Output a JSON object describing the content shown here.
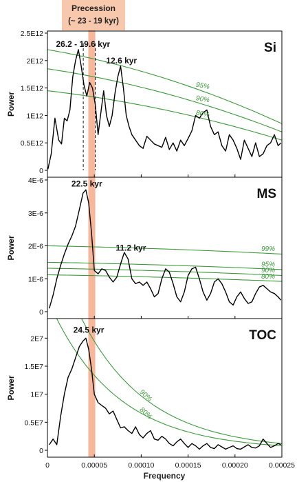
{
  "figure": {
    "band_label_line1": "Precession",
    "band_label_line2": "(~ 23 - 19 kyr)",
    "band_color": "#f4a582",
    "curve_color": "#000000",
    "confidence_color": "#3c9a3c",
    "xlabel": "Frequency",
    "x_ticks": [
      "0",
      "0.00005",
      "0.00010",
      "0.00015",
      "0.00020",
      "0.00025"
    ]
  },
  "chart_data": [
    {
      "type": "line",
      "panel_label": "Si",
      "ylabel": "Power",
      "xlim": [
        0,
        0.00025
      ],
      "ylim": [
        0,
        2500000000000.0
      ],
      "y_ticks": [
        {
          "value": 0,
          "label": "0"
        },
        {
          "value": 500000000000.0,
          "label": "0.5E12"
        },
        {
          "value": 1000000000000.0,
          "label": "1E12"
        },
        {
          "value": 1500000000000.0,
          "label": "1.5E12"
        },
        {
          "value": 2000000000000.0,
          "label": "2E12"
        },
        {
          "value": 2500000000000.0,
          "label": "2.5E12"
        }
      ],
      "series": [
        {
          "x": [
            5e-07,
            4e-06,
            8e-06,
            1.2e-05,
            1.5e-05,
            1.8e-05,
            2.1e-05,
            2.4e-05,
            2.7e-05,
            3e-05,
            3.3e-05,
            3.6e-05,
            3.9e-05,
            4.2e-05,
            4.5e-05,
            4.8e-05,
            5.1e-05,
            5.4e-05,
            5.7e-05,
            6e-05,
            6.3e-05,
            6.6e-05,
            6.9e-05,
            7.2e-05,
            7.5e-05,
            7.8e-05,
            8.1e-05,
            8.4e-05,
            8.7e-05,
            9e-05,
            9.4e-05,
            9.8e-05,
            0.000102,
            0.000106,
            0.00011,
            0.000114,
            0.000118,
            0.000122,
            0.000126,
            0.00013,
            0.000134,
            0.000138,
            0.000142,
            0.000146,
            0.00015,
            0.000154,
            0.000158,
            0.000162,
            0.000166,
            0.00017,
            0.000174,
            0.000178,
            0.000182,
            0.000186,
            0.00019,
            0.000194,
            0.000198,
            0.000202,
            0.000206,
            0.00021,
            0.000214,
            0.000218,
            0.000222,
            0.000226,
            0.00023,
            0.000234,
            0.000238,
            0.000242,
            0.000246,
            0.000249
          ],
          "y": [
            20000000000.0,
            300000000000.0,
            950000000000.0,
            550000000000.0,
            480000000000.0,
            950000000000.0,
            900000000000.0,
            1100000000000.0,
            1700000000000.0,
            2000000000000.0,
            2200000000000.0,
            1900000000000.0,
            1550000000000.0,
            1350000000000.0,
            1600000000000.0,
            1500000000000.0,
            1200000000000.0,
            650000000000.0,
            1050000000000.0,
            1450000000000.0,
            1000000000000.0,
            800000000000.0,
            1000000000000.0,
            1400000000000.0,
            1700000000000.0,
            1900000000000.0,
            1500000000000.0,
            1000000000000.0,
            800000000000.0,
            650000000000.0,
            550000000000.0,
            450000000000.0,
            400000000000.0,
            620000000000.0,
            550000000000.0,
            480000000000.0,
            450000000000.0,
            420000000000.0,
            600000000000.0,
            380000000000.0,
            500000000000.0,
            350000000000.0,
            550000000000.0,
            450000000000.0,
            580000000000.0,
            720000000000.0,
            1000000000000.0,
            950000000000.0,
            1050000000000.0,
            1100000000000.0,
            800000000000.0,
            650000000000.0,
            700000000000.0,
            450000000000.0,
            350000000000.0,
            650000000000.0,
            550000000000.0,
            400000000000.0,
            200000000000.0,
            550000000000.0,
            400000000000.0,
            250000000000.0,
            500000000000.0,
            250000000000.0,
            300000000000.0,
            450000000000.0,
            500000000000.0,
            650000000000.0,
            450000000000.0,
            500000000000.0
          ]
        }
      ],
      "confidence_levels": [
        {
          "label": "95%",
          "x": [
            0,
            0.00025
          ],
          "y_start": 2200000000000.0,
          "y_end": 850000000000.0,
          "label_x": 0.000158
        },
        {
          "label": "90%",
          "x": [
            0,
            0.00025
          ],
          "y_start": 1850000000000.0,
          "y_end": 700000000000.0,
          "label_x": 0.000158
        },
        {
          "label": "80%",
          "x": [
            0,
            0.00025
          ],
          "y_start": 1450000000000.0,
          "y_end": 550000000000.0,
          "label_x": 0.000158
        }
      ],
      "annotations": [
        {
          "text": "26.2 - 19.6 kyr",
          "x": 3.8e-05,
          "y": 2250000000000.0
        },
        {
          "text": "12.6 kyr",
          "x": 7.9e-05,
          "y": 1950000000000.0
        }
      ],
      "dashed_lines_x": [
        3.82e-05,
        5.1e-05
      ]
    },
    {
      "type": "line",
      "panel_label": "MS",
      "ylabel": "Power",
      "xlim": [
        0,
        0.00025
      ],
      "ylim": [
        0,
        4e-06
      ],
      "y_ticks": [
        {
          "value": 0,
          "label": "0"
        },
        {
          "value": 1e-06,
          "label": "1E-6"
        },
        {
          "value": 2e-06,
          "label": "2E-6"
        },
        {
          "value": 3e-06,
          "label": "3E-6"
        },
        {
          "value": 4e-06,
          "label": "4E-6"
        }
      ],
      "series": [
        {
          "x": [
            2e-06,
            6e-06,
            1e-05,
            1.4e-05,
            1.8e-05,
            2.2e-05,
            2.6e-05,
            3e-05,
            3.4e-05,
            3.8e-05,
            4.1e-05,
            4.4e-05,
            4.7e-05,
            5e-05,
            5.4e-05,
            5.8e-05,
            6.2e-05,
            6.6e-05,
            7e-05,
            7.4e-05,
            7.8e-05,
            8.2e-05,
            8.6e-05,
            9e-05,
            9.4e-05,
            9.8e-05,
            0.000102,
            0.000106,
            0.00011,
            0.000114,
            0.000118,
            0.000122,
            0.000126,
            0.00013,
            0.000134,
            0.000138,
            0.000142,
            0.000146,
            0.00015,
            0.000154,
            0.000158,
            0.000162,
            0.000166,
            0.00017,
            0.000174,
            0.000178,
            0.000182,
            0.000186,
            0.00019,
            0.000194,
            0.000198,
            0.000202,
            0.000206,
            0.00021,
            0.000214,
            0.000218,
            0.000222,
            0.000226,
            0.00023,
            0.000234,
            0.000238,
            0.000242,
            0.000246,
            0.000249
          ],
          "y": [
            1e-07,
            5e-07,
            1e-06,
            1.4e-06,
            1.75e-06,
            2.05e-06,
            2.3e-06,
            2.6e-06,
            3.1e-06,
            3.6e-06,
            3.7e-06,
            3.3e-06,
            2.4e-06,
            1.25e-06,
            1.15e-06,
            1.3e-06,
            1.25e-06,
            1.05e-06,
            9e-07,
            1.05e-06,
            1.45e-06,
            1.8e-06,
            1.6e-06,
            1e-06,
            8.5e-07,
            9e-07,
            8e-07,
            9e-07,
            7e-07,
            4.5e-07,
            5.5e-07,
            1e-06,
            1.3e-06,
            1.2e-06,
            8.5e-07,
            4.5e-07,
            3e-07,
            6e-07,
            1.1e-06,
            1.3e-06,
            1.35e-06,
            1e-06,
            6e-07,
            3.5e-07,
            5.5e-07,
            9e-07,
            1e-06,
            8.5e-07,
            6e-07,
            3e-07,
            2e-07,
            4.5e-07,
            6e-07,
            4e-07,
            2.5e-07,
            3e-07,
            5.5e-07,
            7.5e-07,
            8e-07,
            7e-07,
            6e-07,
            5.5e-07,
            4.5e-07,
            3.5e-07
          ]
        }
      ],
      "confidence_levels": [
        {
          "label": "99%",
          "x": [
            0,
            0.00025
          ],
          "y_start": 2e-06,
          "y_end": 1.75e-06,
          "label_x": 0.000228
        },
        {
          "label": "95%",
          "x": [
            0,
            0.00025
          ],
          "y_start": 1.5e-06,
          "y_end": 1.28e-06,
          "label_x": 0.000228
        },
        {
          "label": "90%",
          "x": [
            0,
            0.00025
          ],
          "y_start": 1.32e-06,
          "y_end": 1.1e-06,
          "label_x": 0.000228
        },
        {
          "label": "80%",
          "x": [
            0,
            0.00025
          ],
          "y_start": 1.12e-06,
          "y_end": 9.2e-07,
          "label_x": 0.000228
        }
      ],
      "annotations": [
        {
          "text": "22.5 kyr",
          "x": 4.2e-05,
          "y": 3.8e-06
        },
        {
          "text": "11.2 kyr",
          "x": 8.9e-05,
          "y": 1.85e-06
        }
      ]
    },
    {
      "type": "line",
      "panel_label": "TOC",
      "ylabel": "Power",
      "xlim": [
        0,
        0.00025
      ],
      "ylim": [
        0,
        23000000.0
      ],
      "y_ticks": [
        {
          "value": 0,
          "label": "0"
        },
        {
          "value": 5000000.0,
          "label": "0.5E7"
        },
        {
          "value": 10000000.0,
          "label": "1E7"
        },
        {
          "value": 15000000.0,
          "label": "1.5E7"
        },
        {
          "value": 20000000.0,
          "label": "2E7"
        }
      ],
      "series": [
        {
          "x": [
            2e-06,
            6e-06,
            1e-05,
            1.4e-05,
            1.8e-05,
            2.2e-05,
            2.6e-05,
            3e-05,
            3.4e-05,
            3.8e-05,
            4.1e-05,
            4.4e-05,
            4.7e-05,
            5e-05,
            5.4e-05,
            5.8e-05,
            6.2e-05,
            6.6e-05,
            7e-05,
            7.4e-05,
            7.8e-05,
            8.2e-05,
            8.6e-05,
            9e-05,
            9.4e-05,
            9.8e-05,
            0.000102,
            0.000106,
            0.00011,
            0.000114,
            0.000118,
            0.000122,
            0.000126,
            0.00013,
            0.000134,
            0.000138,
            0.000142,
            0.000146,
            0.00015,
            0.000154,
            0.000158,
            0.000162,
            0.000166,
            0.00017,
            0.000174,
            0.000178,
            0.000182,
            0.000186,
            0.00019,
            0.000194,
            0.000198,
            0.000202,
            0.000206,
            0.00021,
            0.000214,
            0.000218,
            0.000222,
            0.000226,
            0.00023,
            0.000234,
            0.000238,
            0.000242,
            0.000246,
            0.000249
          ],
          "y": [
            1000000.0,
            2000000.0,
            1000000.0,
            6000000.0,
            10000000.0,
            13000000.0,
            14500000.0,
            16500000.0,
            18500000.0,
            19500000.0,
            20000000.0,
            18000000.0,
            14500000.0,
            10000000.0,
            8500000.0,
            8000000.0,
            7500000.0,
            6500000.0,
            7000000.0,
            5500000.0,
            4000000.0,
            4200000.0,
            3500000.0,
            3000000.0,
            4200000.0,
            2800000.0,
            2200000.0,
            3000000.0,
            3500000.0,
            2000000.0,
            1800000.0,
            2500000.0,
            2000000.0,
            1200000.0,
            800000.0,
            1500000.0,
            2000000.0,
            1200000.0,
            500000.0,
            1200000.0,
            800000.0,
            200000.0,
            800000.0,
            1200000.0,
            500000.0,
            300000.0,
            1000000.0,
            600000.0,
            200000.0,
            500000.0,
            800000.0,
            300000.0,
            200000.0,
            600000.0,
            1000000.0,
            500000.0,
            400000.0,
            800000.0,
            2000000.0,
            1200000.0,
            500000.0,
            800000.0,
            1200000.0,
            1000000.0
          ]
        }
      ],
      "confidence_levels": [
        {
          "label": "90%",
          "decay": "exponential",
          "x": [
            0,
            0.00025
          ],
          "y_start": 39000000.0,
          "y_end": 1200000.0,
          "label_x": 9.8e-05
        },
        {
          "label": "80%",
          "decay": "exponential",
          "x": [
            0,
            0.00025
          ],
          "y_start": 27000000.0,
          "y_end": 800000.0,
          "label_x": 9.8e-05
        }
      ],
      "annotations": [
        {
          "text": "24.5 kyr",
          "x": 4.4e-05,
          "y": 21000000.0
        }
      ]
    }
  ]
}
